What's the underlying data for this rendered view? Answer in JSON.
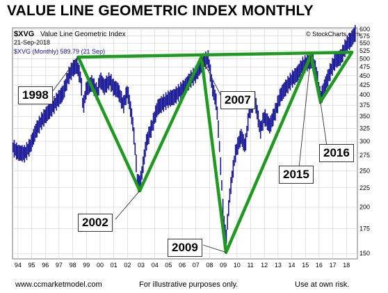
{
  "headline": "VALUE LINE GEOMETRIC INDEX MONTHLY",
  "chart_header": {
    "symbol": "$XVG",
    "name": "Value Line Geometric Index",
    "date": "21-Sep-2018",
    "legend": "$XVG (Monthly) 589.79 (21 Sep)",
    "credit": "© StockCharts.com"
  },
  "footer": {
    "left": "www.ccmarketmodel.com",
    "center": "For illustrative purposes only.",
    "right": "Use at own risk."
  },
  "colors": {
    "price": "#1a1a99",
    "trendline": "#1e9a1e",
    "grid": "#cfcfcf"
  },
  "chart_data": {
    "type": "line",
    "title": "VALUE LINE GEOMETRIC INDEX MONTHLY",
    "xlabel": "",
    "ylabel": "",
    "x_range": [
      1993.6,
      2018.8
    ],
    "ylim": [
      145,
      605
    ],
    "y_scale": "log",
    "grid": true,
    "x_ticks": [
      "94",
      "95",
      "96",
      "97",
      "98",
      "99",
      "00",
      "01",
      "02",
      "03",
      "04",
      "05",
      "06",
      "07",
      "08",
      "09",
      "10",
      "11",
      "12",
      "13",
      "14",
      "15",
      "16",
      "17",
      "18"
    ],
    "y_ticks": [
      150,
      175,
      200,
      225,
      250,
      275,
      300,
      325,
      350,
      375,
      400,
      425,
      450,
      475,
      500,
      525,
      550,
      575,
      600
    ],
    "series": [
      {
        "x": [
          1993.6,
          1994.0,
          1994.5,
          1994.9,
          1995.3,
          1995.7,
          1996.1,
          1996.5,
          1996.9,
          1997.3,
          1997.7,
          1998.0,
          1998.3,
          1998.6,
          1998.75,
          1999.0,
          1999.4,
          1999.8,
          2000.0,
          2000.3,
          2000.7,
          2001.0,
          2001.3,
          2001.7,
          2002.0,
          2002.4,
          2002.75,
          2003.0,
          2003.4,
          2003.8,
          2004.2,
          2004.6,
          2005.0,
          2005.4,
          2005.8,
          2006.2,
          2006.6,
          2007.0,
          2007.5,
          2007.9,
          2008.2,
          2008.5,
          2008.8,
          2009.0,
          2009.2,
          2009.5,
          2009.9,
          2010.3,
          2010.6,
          2010.9,
          2011.3,
          2011.7,
          2012.0,
          2012.4,
          2012.8,
          2013.2,
          2013.6,
          2014.0,
          2014.4,
          2014.8,
          2015.2,
          2015.5,
          2015.8,
          2016.1,
          2016.5,
          2016.9,
          2017.2,
          2017.6,
          2018.0,
          2018.3,
          2018.7
        ],
        "close": [
          290,
          280,
          278,
          292,
          320,
          340,
          355,
          370,
          388,
          405,
          450,
          470,
          480,
          440,
          368,
          415,
          430,
          405,
          440,
          420,
          438,
          418,
          412,
          375,
          410,
          332,
          230,
          238,
          300,
          330,
          370,
          380,
          390,
          395,
          408,
          420,
          440,
          455,
          490,
          500,
          420,
          380,
          260,
          190,
          162,
          220,
          280,
          310,
          290,
          360,
          390,
          320,
          350,
          330,
          360,
          400,
          420,
          440,
          455,
          480,
          490,
          495,
          460,
          390,
          430,
          470,
          495,
          505,
          545,
          560,
          590
        ]
      }
    ],
    "trendlines": [
      {
        "from": [
          1998.4,
          505
        ],
        "to": [
          2018.4,
          520
        ]
      },
      {
        "from": [
          1998.4,
          505
        ],
        "to": [
          2002.9,
          221
        ]
      },
      {
        "from": [
          2002.9,
          221
        ],
        "to": [
          2007.4,
          505
        ]
      },
      {
        "from": [
          2007.4,
          505
        ],
        "to": [
          2009.2,
          151
        ]
      },
      {
        "from": [
          2009.2,
          151
        ],
        "to": [
          2015.4,
          510
        ]
      },
      {
        "from": [
          2015.4,
          510
        ],
        "to": [
          2016.1,
          383
        ]
      },
      {
        "from": [
          2016.1,
          383
        ],
        "to": [
          2018.4,
          520
        ]
      }
    ],
    "annotations": [
      {
        "label": "1998",
        "x": 1998.4,
        "y": 505
      },
      {
        "label": "2002",
        "x": 2002.9,
        "y": 221
      },
      {
        "label": "2007",
        "x": 2007.4,
        "y": 505
      },
      {
        "label": "2009",
        "x": 2009.2,
        "y": 151
      },
      {
        "label": "2015",
        "x": 2015.4,
        "y": 510
      },
      {
        "label": "2016",
        "x": 2016.1,
        "y": 383
      }
    ]
  }
}
